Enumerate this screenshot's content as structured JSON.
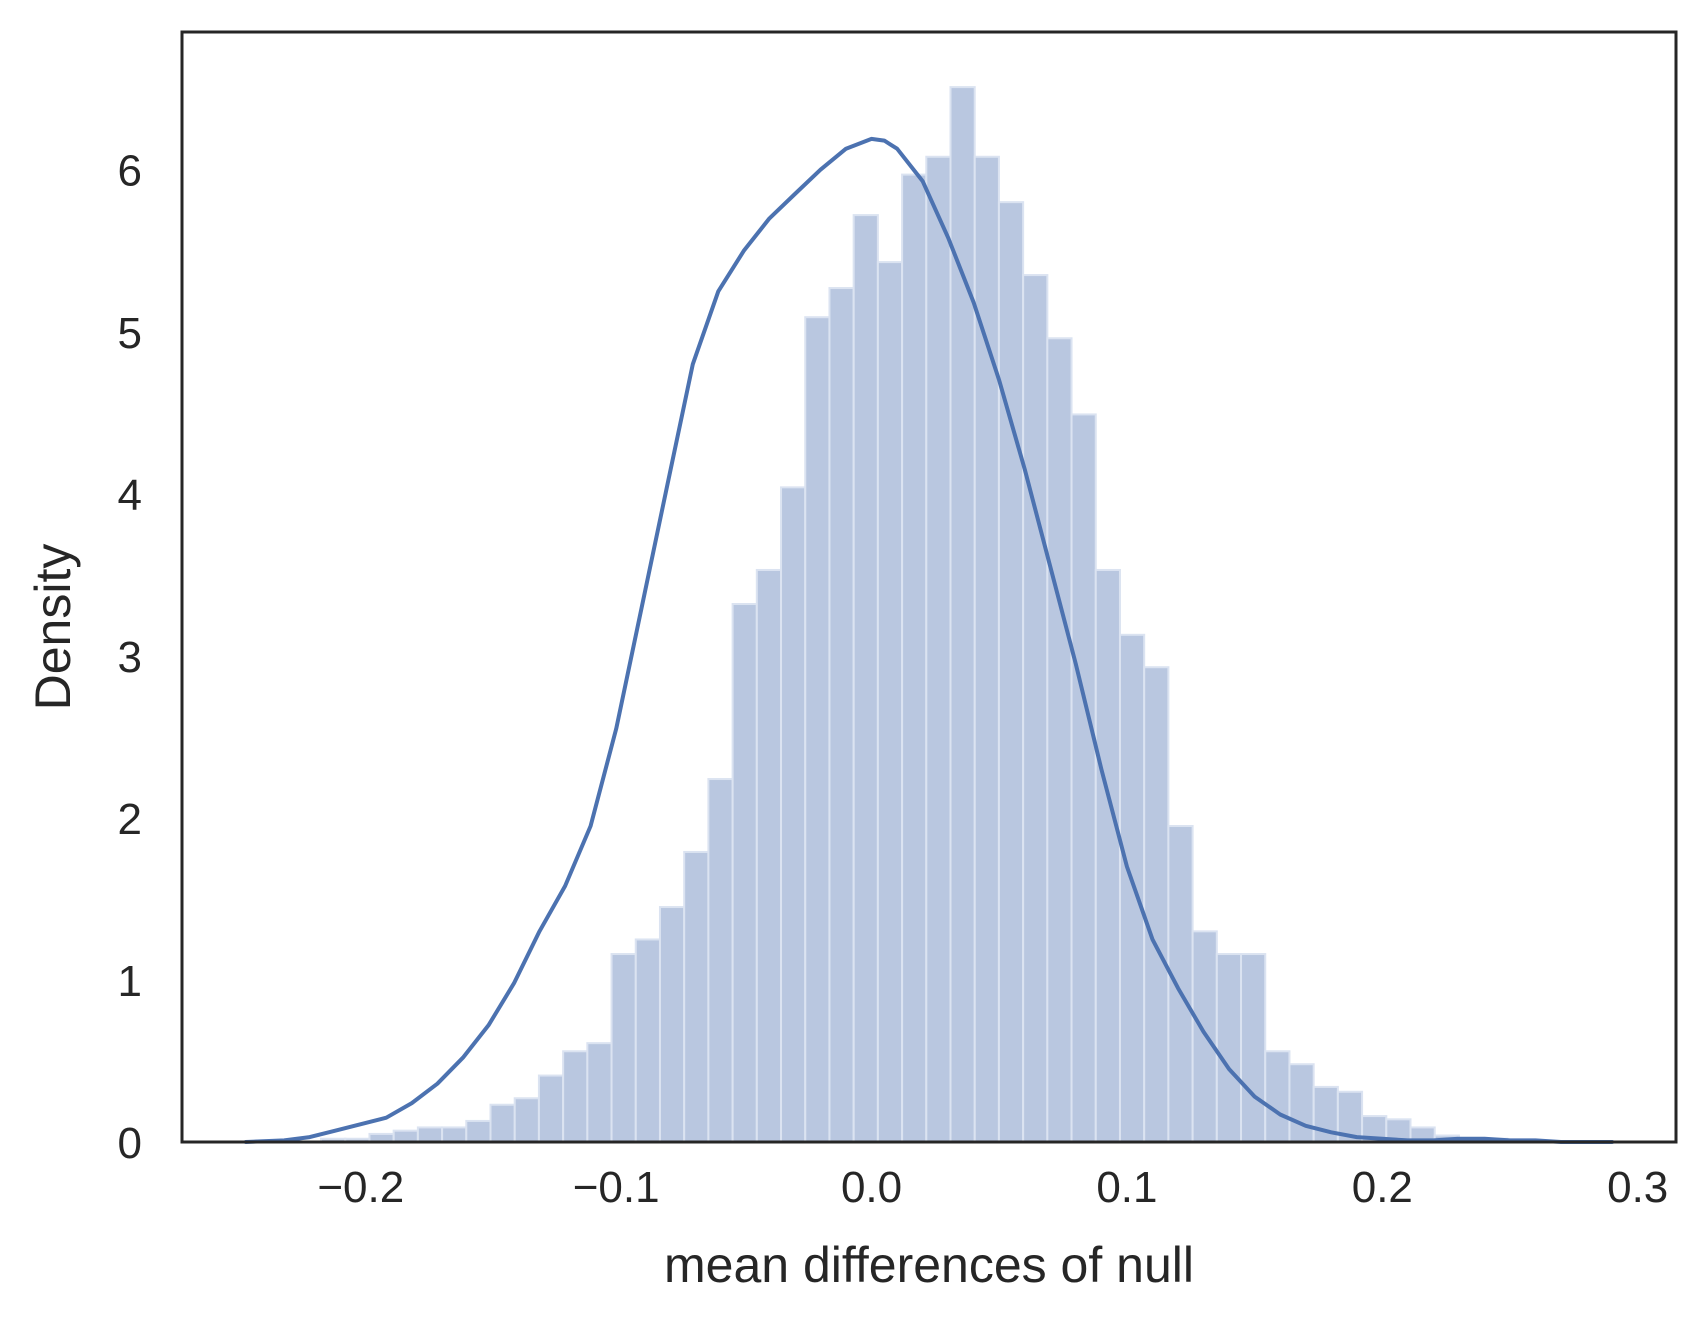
{
  "chart_data": {
    "type": "bar",
    "subtype": "histogram-with-kde",
    "title": "",
    "xlabel": "mean differences of null",
    "ylabel": "Density",
    "xlim": [
      -0.27,
      0.315
    ],
    "ylim": [
      0,
      6.85
    ],
    "xticks": [
      -0.2,
      -0.1,
      0.0,
      0.1,
      0.2,
      0.3
    ],
    "xtick_labels": [
      "−0.2",
      "−0.1",
      "0.0",
      "0.1",
      "0.2",
      "0.3"
    ],
    "yticks": [
      0,
      1,
      2,
      3,
      4,
      5,
      6
    ],
    "ytick_labels": [
      "0",
      "1",
      "2",
      "3",
      "4",
      "5",
      "6"
    ],
    "grid": false,
    "legend": "none",
    "colors": {
      "bar": "#b9c7e0",
      "bar_edge": "#dbe3f1",
      "kde": "#4c72b0",
      "frame": "#262626",
      "text": "#262626"
    },
    "bins": {
      "start": -0.244,
      "width": 0.00948,
      "values": [
        0.0,
        0.0,
        0.0,
        0.02,
        0.02,
        0.05,
        0.07,
        0.09,
        0.09,
        0.13,
        0.23,
        0.27,
        0.41,
        0.56,
        0.61,
        1.16,
        1.25,
        1.45,
        1.79,
        2.24,
        3.32,
        3.53,
        4.04,
        5.09,
        5.27,
        5.72,
        5.43,
        5.97,
        6.08,
        6.51,
        6.08,
        5.8,
        5.35,
        4.96,
        4.49,
        3.53,
        3.13,
        2.93,
        1.95,
        1.3,
        1.16,
        1.16,
        0.56,
        0.48,
        0.34,
        0.31,
        0.16,
        0.14,
        0.09,
        0.04,
        0.02,
        0.02,
        0.0,
        0.0,
        0.0,
        0.0,
        0.0
      ]
    },
    "kde": {
      "x": [
        -0.245,
        -0.23,
        -0.22,
        -0.21,
        -0.2,
        -0.19,
        -0.18,
        -0.17,
        -0.16,
        -0.15,
        -0.14,
        -0.13,
        -0.12,
        -0.11,
        -0.1,
        -0.09,
        -0.08,
        -0.07,
        -0.06,
        -0.05,
        -0.04,
        -0.03,
        -0.02,
        -0.01,
        0.0,
        0.005,
        0.01,
        0.02,
        0.03,
        0.04,
        0.05,
        0.06,
        0.07,
        0.08,
        0.09,
        0.1,
        0.11,
        0.12,
        0.13,
        0.14,
        0.15,
        0.16,
        0.17,
        0.18,
        0.19,
        0.2,
        0.21,
        0.22,
        0.23,
        0.24,
        0.25,
        0.26,
        0.27,
        0.28,
        0.29
      ],
      "y": [
        0.0,
        0.01,
        0.03,
        0.07,
        0.11,
        0.15,
        0.24,
        0.36,
        0.52,
        0.72,
        0.98,
        1.3,
        1.58,
        1.95,
        2.55,
        3.3,
        4.05,
        4.8,
        5.25,
        5.5,
        5.7,
        5.85,
        6.0,
        6.13,
        6.19,
        6.18,
        6.13,
        5.93,
        5.58,
        5.18,
        4.7,
        4.15,
        3.55,
        2.95,
        2.3,
        1.7,
        1.25,
        0.95,
        0.68,
        0.45,
        0.28,
        0.17,
        0.1,
        0.06,
        0.03,
        0.02,
        0.01,
        0.01,
        0.02,
        0.02,
        0.01,
        0.01,
        0.0,
        0.0,
        0.0
      ]
    }
  }
}
